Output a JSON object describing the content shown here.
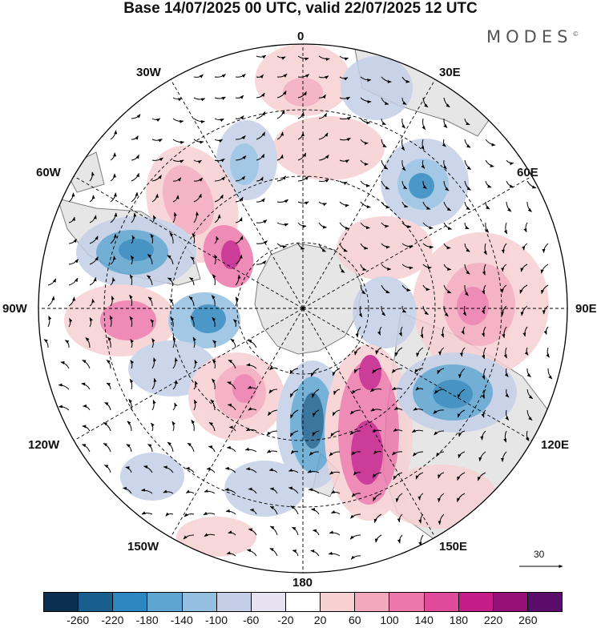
{
  "title": "Base 14/07/2025 00 UTC, valid 22/07/2025 12 UTC",
  "brand": "MODES",
  "brand_mark": "©",
  "longitude_labels": {
    "lon_0": "0",
    "lon_30e": "30E",
    "lon_60e": "60E",
    "lon_90e": "90E",
    "lon_120e": "120E",
    "lon_150e": "150E",
    "lon_180": "180",
    "lon_150w": "150W",
    "lon_120w": "120W",
    "lon_90w": "90W",
    "lon_60w": "60W",
    "lon_30w": "30W"
  },
  "reference_vector": {
    "label": "30",
    "magnitude": 30
  },
  "colorbar": {
    "colors": [
      "#0b2f4f",
      "#185f8e",
      "#2c86bf",
      "#5fa5d2",
      "#93bfe1",
      "#c4cfe7",
      "#e6e2f1",
      "#ffffff",
      "#f7d0d2",
      "#f3a8bd",
      "#ec77ab",
      "#e04a9b",
      "#c41c89",
      "#951179",
      "#5a0c6b"
    ],
    "tick_labels": [
      "-260",
      "-220",
      "-180",
      "-140",
      "-100",
      "-60",
      "-20",
      "20",
      "60",
      "100",
      "140",
      "180",
      "220",
      "260"
    ]
  },
  "colors": {
    "land": "#e6e6e6",
    "graticule": "#000000"
  }
}
